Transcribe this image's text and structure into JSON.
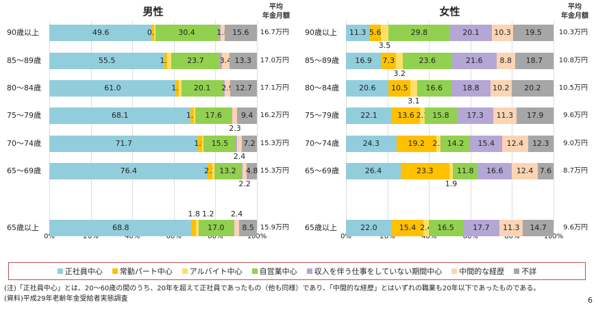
{
  "chart_data": [
    {
      "type": "bar",
      "orientation": "horizontal",
      "stacked": true,
      "title": "男性",
      "xlim": [
        0,
        100
      ],
      "ticks": [
        "0%",
        "20%",
        "40%",
        "60%",
        "80%",
        "100%"
      ],
      "amount_header": [
        "平均",
        "年金月額"
      ],
      "categories": [
        "90歳以上",
        "85～89歳",
        "80～84歳",
        "75～79歳",
        "70～74歳",
        "65～69歳",
        "65歳以上"
      ],
      "amounts": [
        "16.7万円",
        "17.0万円",
        "17.1万円",
        "16.2万円",
        "15.3万円",
        "15.3万円",
        "15.9万円"
      ],
      "rows": [
        {
          "values": [
            49.6,
            0.9,
            0.5,
            30.4,
            1.2,
            1.8,
            15.6
          ],
          "labels": [
            "49.6",
            "0.9",
            "",
            "30.4",
            "",
            "1.8",
            "15.6"
          ]
        },
        {
          "values": [
            55.5,
            1.3,
            1.8,
            23.7,
            1.0,
            3.4,
            13.3
          ],
          "labels": [
            "55.5",
            "1.3",
            "",
            "23.7",
            "",
            "3.4",
            "13.3"
          ]
        },
        {
          "values": [
            61.0,
            1.4,
            1.2,
            20.1,
            0.7,
            2.9,
            12.7
          ],
          "labels": [
            "61.0",
            "1.4",
            "",
            "20.1",
            "",
            "2.9",
            "12.7"
          ]
        },
        {
          "values": [
            68.1,
            1.5,
            0.7,
            17.6,
            0.4,
            2.3,
            9.4
          ],
          "labels": [
            "68.1",
            "1.5",
            "",
            "17.6",
            "",
            "2.3",
            "9.4"
          ]
        },
        {
          "values": [
            71.7,
            1.9,
            0.8,
            15.5,
            0.5,
            2.4,
            7.2
          ],
          "labels": [
            "71.7",
            "1.9",
            "",
            "15.5",
            "",
            "2.4",
            "7.2"
          ],
          "placement": [
            "in",
            "in",
            "in",
            "in",
            "in",
            "below",
            "in"
          ]
        },
        {
          "values": [
            76.4,
            2.2,
            0.8,
            13.2,
            0.4,
            2.2,
            4.8
          ],
          "labels": [
            "76.4",
            "2.2",
            "",
            "13.2",
            "",
            "2.2",
            "4.8"
          ],
          "placement": [
            "in",
            "in",
            "in",
            "in",
            "in",
            "below",
            "in"
          ]
        },
        {
          "values": [
            68.8,
            1.8,
            1.2,
            17.0,
            0.3,
            2.4,
            8.5
          ],
          "labels": [
            "68.8",
            "1.8",
            "1.2",
            "17.0",
            "",
            "2.4",
            "8.5"
          ],
          "placement": [
            "in",
            "above",
            "above",
            "in",
            "in",
            "above",
            "in"
          ]
        }
      ]
    },
    {
      "type": "bar",
      "orientation": "horizontal",
      "stacked": true,
      "title": "女性",
      "xlim": [
        0,
        100
      ],
      "ticks": [
        "0%",
        "20%",
        "40%",
        "60%",
        "80%",
        "100%"
      ],
      "amount_header": [
        "平均",
        "年金月額"
      ],
      "categories": [
        "90歳以上",
        "85～89歳",
        "80～84歳",
        "75～79歳",
        "70～74歳",
        "65～69歳",
        "65歳以上"
      ],
      "amounts": [
        "10.3万円",
        "10.8万円",
        "10.5万円",
        "9.6万円",
        "9.0万円",
        "8.7万円",
        "9.6万円"
      ],
      "rows": [
        {
          "values": [
            11.3,
            5.6,
            3.5,
            29.8,
            20.1,
            10.3,
            19.5
          ],
          "labels": [
            "11.3",
            "5.6",
            "3.5",
            "29.8",
            "20.1",
            "10.3",
            "19.5"
          ]
        },
        {
          "values": [
            16.9,
            7.3,
            3.2,
            23.6,
            21.6,
            8.8,
            18.7
          ],
          "labels": [
            "16.9",
            "7.3",
            "3.2",
            "23.6",
            "21.6",
            "8.8",
            "18.7"
          ]
        },
        {
          "values": [
            20.6,
            10.5,
            3.1,
            16.6,
            18.8,
            10.2,
            20.2
          ],
          "labels": [
            "20.6",
            "10.5",
            "3.1",
            "16.6",
            "18.8",
            "10.2",
            "20.2"
          ]
        },
        {
          "values": [
            22.1,
            13.6,
            2.1,
            15.8,
            17.3,
            11.3,
            17.9
          ],
          "labels": [
            "22.1",
            "13.6",
            "2.1",
            "15.8",
            "17.3",
            "11.3",
            "17.9"
          ]
        },
        {
          "values": [
            24.3,
            19.2,
            2.2,
            14.2,
            15.4,
            12.4,
            12.3
          ],
          "labels": [
            "24.3",
            "19.2",
            "2.2",
            "14.2",
            "15.4",
            "12.4",
            "12.3"
          ]
        },
        {
          "values": [
            26.4,
            23.3,
            1.9,
            11.8,
            16.6,
            12.4,
            7.6
          ],
          "labels": [
            "26.4",
            "23.3",
            "1.9",
            "11.8",
            "16.6",
            "12.4",
            "7.6"
          ]
        },
        {
          "values": [
            22.0,
            15.4,
            2.4,
            16.5,
            17.7,
            11.3,
            14.7
          ],
          "labels": [
            "22.0",
            "15.4",
            "2.4",
            "16.5",
            "17.7",
            "11.3",
            "14.7"
          ]
        }
      ]
    }
  ],
  "legend": [
    {
      "label": "正社員中心",
      "color": "#92CDDC"
    },
    {
      "label": "常勤パート中心",
      "color": "#FFC000"
    },
    {
      "label": "アルバイト中心",
      "color": "#FFE066"
    },
    {
      "label": "自営業中心",
      "color": "#92D050"
    },
    {
      "label": "収入を伴う仕事をしていない期間中心",
      "color": "#B4A7D6"
    },
    {
      "label": "中間的な経歴",
      "color": "#FBD4B4"
    },
    {
      "label": "不詳",
      "color": "#A6A6A6"
    }
  ],
  "notes": {
    "note": "(注)「正社員中心」とは、20～60歳の間のうち、20年を超えて正社員であったもの（他も同様）であり、「中間的な経歴」とはいずれの職業も20年以下であったものである。",
    "source": "(資料)平成29年老齢年金受給者実態調査",
    "page": "6"
  }
}
